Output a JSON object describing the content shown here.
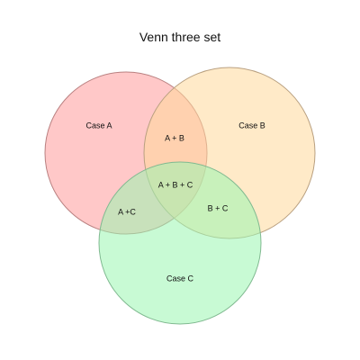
{
  "title": "Venn three set",
  "sets": [
    {
      "id": "a",
      "label": "Case A",
      "fill": "#ff9a9a",
      "stroke": "#b98080"
    },
    {
      "id": "b",
      "label": "Case B",
      "fill": "#ffd89a",
      "stroke": "#b9a080"
    },
    {
      "id": "c",
      "label": "Case C",
      "fill": "#9af5b0",
      "stroke": "#80b990"
    }
  ],
  "intersections": {
    "ab": "A + B",
    "bc": "B + C",
    "ac": "A +C",
    "abc": "A + B + C"
  }
}
